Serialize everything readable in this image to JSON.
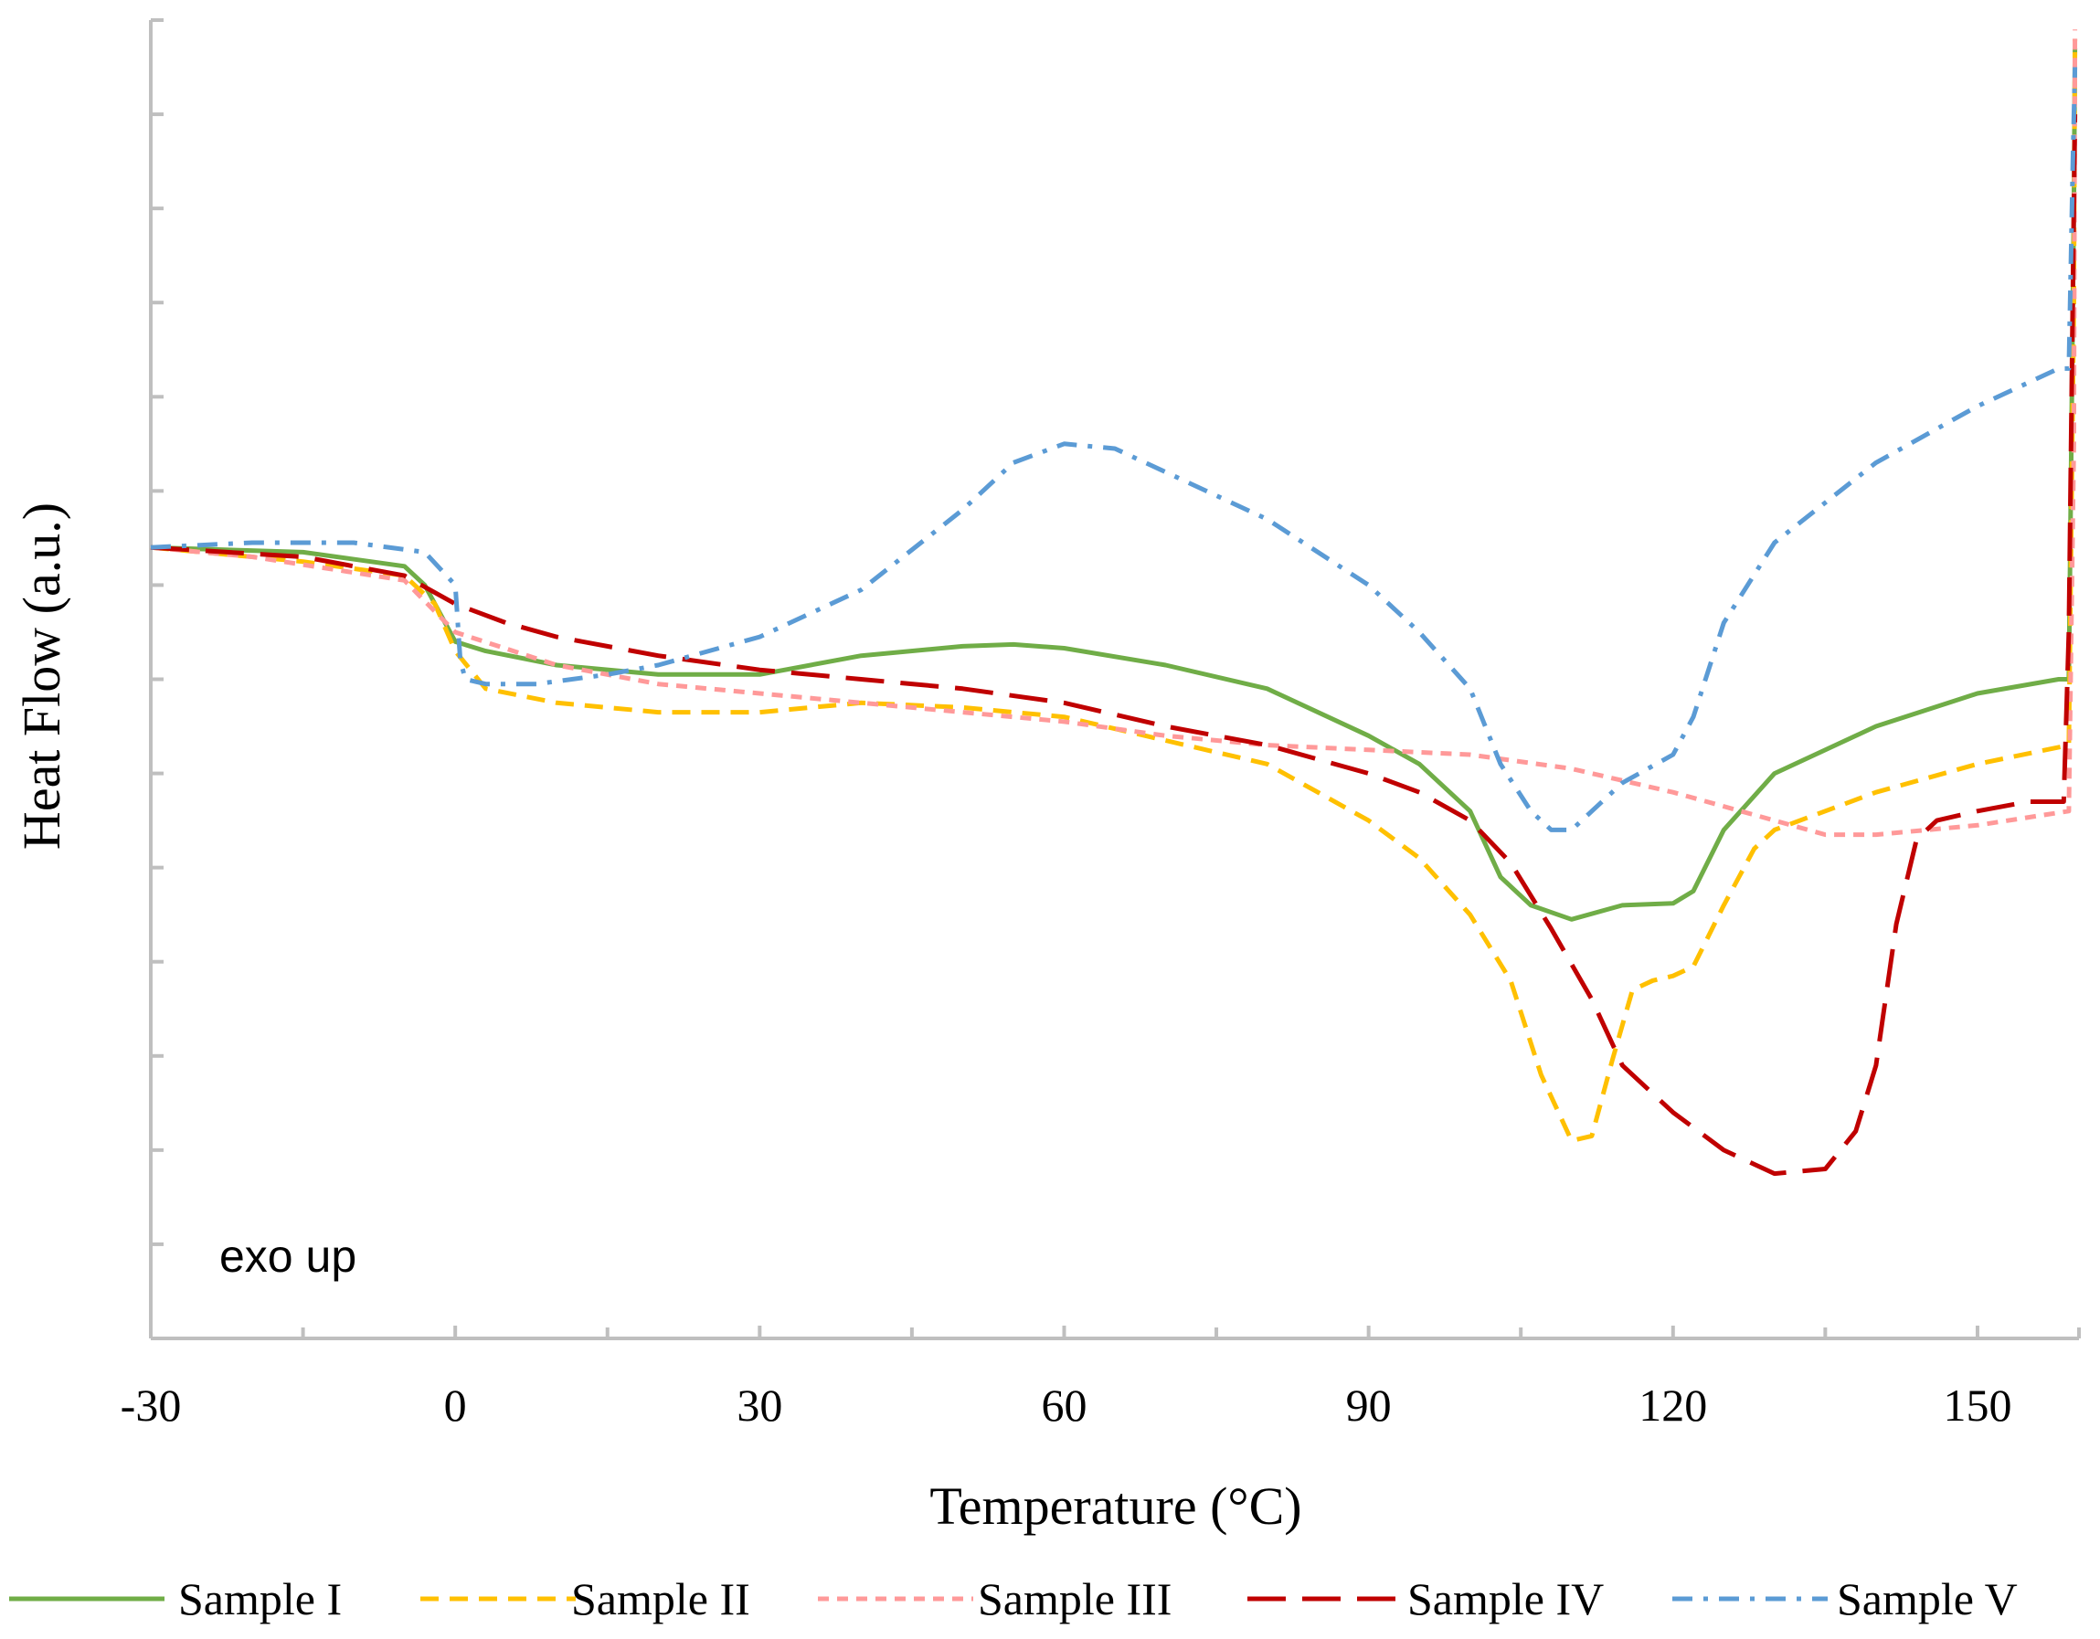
{
  "chart_data": {
    "type": "line",
    "title": "",
    "xlabel": "Temperature (°C)",
    "ylabel": "Heat Flow (a.u.)",
    "annotation": "exo up",
    "xlim": [
      -30,
      160
    ],
    "ylim": [
      0,
      14
    ],
    "x_ticks": [
      -30,
      0,
      30,
      60,
      90,
      120,
      150
    ],
    "x_tick_labels": [
      "-30",
      "0",
      "30",
      "60",
      "90",
      "120",
      "150"
    ],
    "y_ticks": [
      0,
      1,
      2,
      3,
      4,
      5,
      6,
      7,
      8,
      9,
      10,
      11,
      12,
      13,
      14
    ],
    "grid": false,
    "legend_position": "bottom",
    "series": [
      {
        "name": "Sample I",
        "color": "#70AD47",
        "dash": "solid",
        "points": [
          [
            -30,
            8.4
          ],
          [
            -15,
            8.35
          ],
          [
            -5,
            8.2
          ],
          [
            -3,
            8.0
          ],
          [
            0,
            7.4
          ],
          [
            3,
            7.3
          ],
          [
            10,
            7.15
          ],
          [
            20,
            7.05
          ],
          [
            30,
            7.05
          ],
          [
            40,
            7.25
          ],
          [
            50,
            7.35
          ],
          [
            55,
            7.37
          ],
          [
            60,
            7.33
          ],
          [
            70,
            7.15
          ],
          [
            80,
            6.9
          ],
          [
            90,
            6.4
          ],
          [
            95,
            6.1
          ],
          [
            100,
            5.6
          ],
          [
            103,
            4.9
          ],
          [
            106,
            4.6
          ],
          [
            110,
            4.45
          ],
          [
            115,
            4.6
          ],
          [
            120,
            4.62
          ],
          [
            122,
            4.75
          ],
          [
            125,
            5.4
          ],
          [
            130,
            6.0
          ],
          [
            140,
            6.5
          ],
          [
            150,
            6.85
          ],
          [
            158,
            7.0
          ],
          [
            159,
            7.0
          ],
          [
            159.5,
            12.0
          ],
          [
            159.6,
            13.7
          ]
        ]
      },
      {
        "name": "Sample II",
        "color": "#FFC000",
        "dash": "dashed",
        "points": [
          [
            -30,
            8.4
          ],
          [
            -15,
            8.25
          ],
          [
            -5,
            8.1
          ],
          [
            -2,
            7.8
          ],
          [
            0,
            7.3
          ],
          [
            3,
            6.9
          ],
          [
            10,
            6.75
          ],
          [
            20,
            6.65
          ],
          [
            30,
            6.65
          ],
          [
            40,
            6.75
          ],
          [
            50,
            6.7
          ],
          [
            60,
            6.6
          ],
          [
            70,
            6.35
          ],
          [
            80,
            6.1
          ],
          [
            90,
            5.5
          ],
          [
            95,
            5.1
          ],
          [
            100,
            4.5
          ],
          [
            104,
            3.8
          ],
          [
            107,
            2.8
          ],
          [
            110,
            2.1
          ],
          [
            112,
            2.15
          ],
          [
            114,
            2.95
          ],
          [
            116,
            3.7
          ],
          [
            118,
            3.8
          ],
          [
            120,
            3.85
          ],
          [
            122,
            3.95
          ],
          [
            125,
            4.6
          ],
          [
            128,
            5.2
          ],
          [
            130,
            5.4
          ],
          [
            140,
            5.8
          ],
          [
            150,
            6.1
          ],
          [
            159,
            6.3
          ],
          [
            159.5,
            11
          ],
          [
            159.6,
            13.8
          ]
        ]
      },
      {
        "name": "Sample III",
        "color": "#FF9999",
        "dash": "short-dash",
        "points": [
          [
            -30,
            8.4
          ],
          [
            -20,
            8.3
          ],
          [
            -5,
            8.05
          ],
          [
            0,
            7.5
          ],
          [
            10,
            7.15
          ],
          [
            20,
            6.95
          ],
          [
            30,
            6.85
          ],
          [
            40,
            6.75
          ],
          [
            50,
            6.65
          ],
          [
            60,
            6.55
          ],
          [
            70,
            6.4
          ],
          [
            80,
            6.3
          ],
          [
            90,
            6.25
          ],
          [
            100,
            6.2
          ],
          [
            110,
            6.05
          ],
          [
            120,
            5.8
          ],
          [
            130,
            5.5
          ],
          [
            135,
            5.35
          ],
          [
            140,
            5.35
          ],
          [
            150,
            5.45
          ],
          [
            159,
            5.6
          ],
          [
            159.5,
            9.5
          ],
          [
            159.6,
            13.9
          ]
        ]
      },
      {
        "name": "Sample IV",
        "color": "#C00000",
        "dash": "long-dash",
        "points": [
          [
            -30,
            8.4
          ],
          [
            -15,
            8.3
          ],
          [
            -5,
            8.1
          ],
          [
            0,
            7.8
          ],
          [
            5,
            7.6
          ],
          [
            10,
            7.45
          ],
          [
            20,
            7.25
          ],
          [
            30,
            7.1
          ],
          [
            40,
            7.0
          ],
          [
            50,
            6.9
          ],
          [
            60,
            6.75
          ],
          [
            70,
            6.5
          ],
          [
            80,
            6.3
          ],
          [
            90,
            6.0
          ],
          [
            95,
            5.8
          ],
          [
            100,
            5.5
          ],
          [
            104,
            5.05
          ],
          [
            108,
            4.35
          ],
          [
            112,
            3.6
          ],
          [
            115,
            2.9
          ],
          [
            120,
            2.4
          ],
          [
            125,
            2.0
          ],
          [
            130,
            1.75
          ],
          [
            135,
            1.8
          ],
          [
            138,
            2.2
          ],
          [
            140,
            2.9
          ],
          [
            142,
            4.4
          ],
          [
            144,
            5.3
          ],
          [
            146,
            5.5
          ],
          [
            150,
            5.6
          ],
          [
            155,
            5.7
          ],
          [
            158.5,
            5.7
          ],
          [
            159,
            7.5
          ],
          [
            159.6,
            13.0
          ]
        ]
      },
      {
        "name": "Sample V",
        "color": "#5B9BD5",
        "dash": "dash-dot",
        "points": [
          [
            -30,
            8.4
          ],
          [
            -20,
            8.45
          ],
          [
            -10,
            8.45
          ],
          [
            -3,
            8.35
          ],
          [
            0,
            8.0
          ],
          [
            0.5,
            7.2
          ],
          [
            1,
            7.0
          ],
          [
            3,
            6.95
          ],
          [
            8,
            6.95
          ],
          [
            15,
            7.05
          ],
          [
            20,
            7.15
          ],
          [
            30,
            7.45
          ],
          [
            40,
            7.95
          ],
          [
            50,
            8.8
          ],
          [
            55,
            9.3
          ],
          [
            60,
            9.5
          ],
          [
            65,
            9.45
          ],
          [
            70,
            9.2
          ],
          [
            80,
            8.7
          ],
          [
            90,
            8.0
          ],
          [
            95,
            7.5
          ],
          [
            100,
            6.9
          ],
          [
            103,
            6.1
          ],
          [
            106,
            5.6
          ],
          [
            108,
            5.4
          ],
          [
            110,
            5.4
          ],
          [
            115,
            5.9
          ],
          [
            120,
            6.2
          ],
          [
            122,
            6.6
          ],
          [
            125,
            7.6
          ],
          [
            130,
            8.45
          ],
          [
            140,
            9.3
          ],
          [
            150,
            9.9
          ],
          [
            158,
            10.3
          ],
          [
            159,
            10.3
          ],
          [
            159.4,
            12.5
          ],
          [
            159.6,
            13.5
          ]
        ]
      }
    ]
  }
}
